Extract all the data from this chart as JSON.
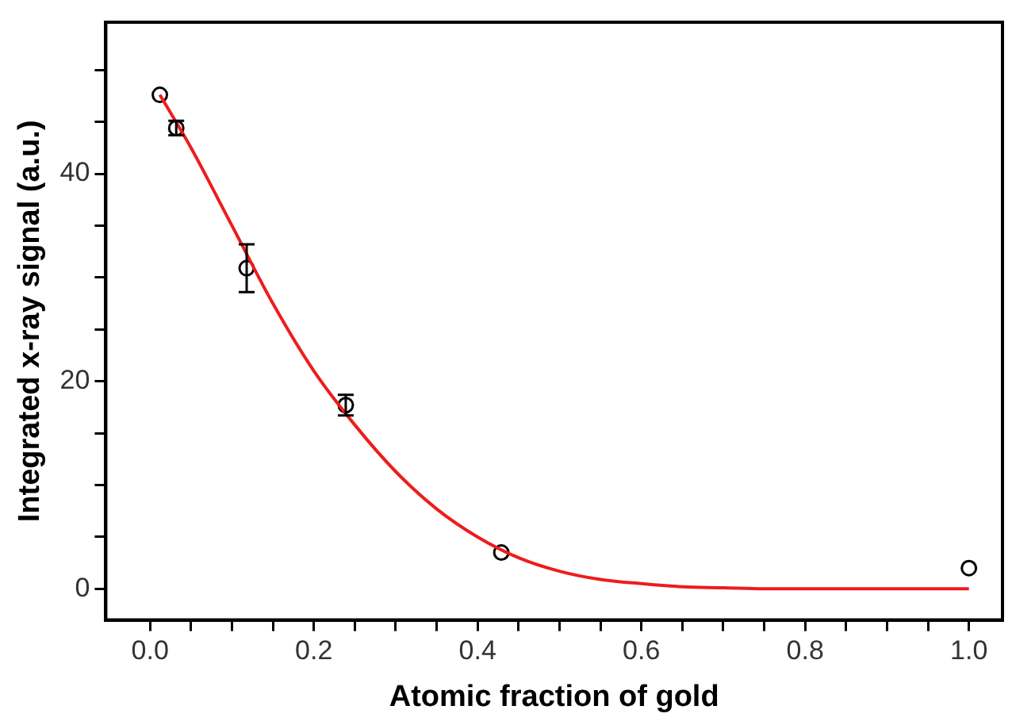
{
  "chart_data": {
    "type": "scatter",
    "xlabel": "Atomic fraction of gold",
    "ylabel": "Integrated x-ray signal (a.u.)",
    "xlim": [
      -0.054,
      1.041
    ],
    "ylim": [
      -3.0,
      54.6
    ],
    "xticks": [
      {
        "value": 0,
        "label": "0.0"
      },
      {
        "value": 0.05,
        "label": null
      },
      {
        "value": 0.1,
        "label": null
      },
      {
        "value": 0.15,
        "label": null
      },
      {
        "value": 0.2,
        "label": "0.2"
      },
      {
        "value": 0.25,
        "label": null
      },
      {
        "value": 0.3,
        "label": null
      },
      {
        "value": 0.35,
        "label": null
      },
      {
        "value": 0.4,
        "label": "0.4"
      },
      {
        "value": 0.45,
        "label": null
      },
      {
        "value": 0.5,
        "label": null
      },
      {
        "value": 0.55,
        "label": null
      },
      {
        "value": 0.6,
        "label": "0.6"
      },
      {
        "value": 0.65,
        "label": null
      },
      {
        "value": 0.7,
        "label": null
      },
      {
        "value": 0.75,
        "label": null
      },
      {
        "value": 0.8,
        "label": "0.8"
      },
      {
        "value": 0.85,
        "label": null
      },
      {
        "value": 0.9,
        "label": null
      },
      {
        "value": 0.95,
        "label": null
      },
      {
        "value": 1,
        "label": "1.0"
      }
    ],
    "yticks": [
      0,
      {
        "value": 5,
        "label": null
      },
      {
        "value": 10,
        "label": null
      },
      {
        "value": 15,
        "label": null
      },
      20,
      {
        "value": 25,
        "label": null
      },
      {
        "value": 30,
        "label": null
      },
      {
        "value": 35,
        "label": null
      },
      40,
      {
        "value": 45,
        "label": null
      },
      {
        "value": 50,
        "label": null
      }
    ],
    "grid": false,
    "legend": false,
    "series": [
      {
        "type": "line",
        "color": "#ee1c1c",
        "marker": "none",
        "line_style": "solid",
        "x": [
          0.012,
          0.05,
          0.1,
          0.15,
          0.2,
          0.25,
          0.3,
          0.35,
          0.4,
          0.45,
          0.5,
          0.55,
          0.6,
          0.65,
          0.7,
          0.75,
          1.0
        ],
        "values": [
          47.6,
          42.5,
          35,
          27.5,
          21,
          15.8,
          11.3,
          7.7,
          5,
          3,
          1.7,
          0.9,
          0.5,
          0.2,
          0.1,
          0,
          0
        ]
      },
      {
        "type": "scatter",
        "color": "#000000",
        "marker": "circle",
        "x": [
          0.012,
          0.032,
          0.118,
          0.239,
          0.429,
          1.0
        ],
        "values": [
          47.6,
          44.4,
          30.9,
          17.7,
          3.5,
          2.0
        ],
        "errors": [
          null,
          0.7,
          2.3,
          1.0,
          null,
          null
        ]
      }
    ]
  }
}
